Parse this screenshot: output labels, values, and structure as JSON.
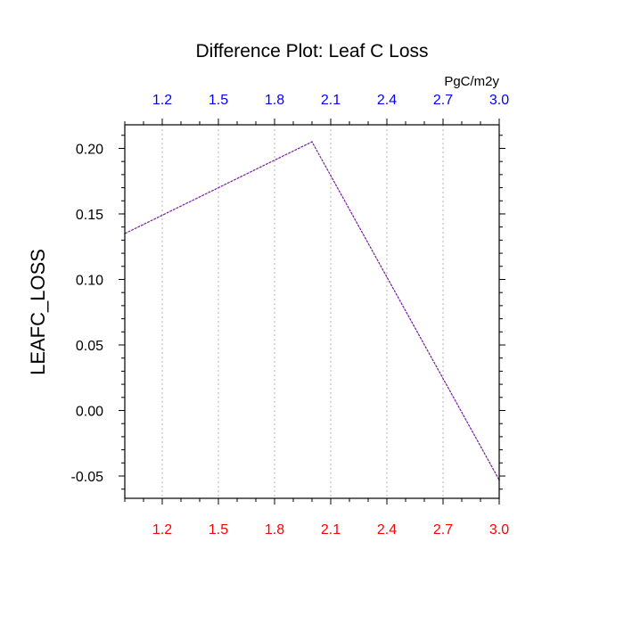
{
  "chart_data": {
    "type": "line",
    "title": "Difference Plot: Leaf C Loss",
    "ylabel": "LEAFC_LOSS",
    "xlabel": "",
    "units_label": "PgC/m2y",
    "xlim": [
      1.0,
      3.0
    ],
    "ylim": [
      -0.067,
      0.218
    ],
    "x_ticks": [
      1.2,
      1.5,
      1.8,
      2.1,
      2.4,
      2.7,
      3.0
    ],
    "x_tick_labels": [
      "1.2",
      "1.5",
      "1.8",
      "2.1",
      "2.4",
      "2.7",
      "3.0"
    ],
    "y_ticks": [
      -0.05,
      0.0,
      0.05,
      0.1,
      0.15,
      0.2
    ],
    "y_tick_labels": [
      "-0.05",
      "0.00",
      "0.05",
      "0.10",
      "0.15",
      "0.20"
    ],
    "grid": "vertical dotted",
    "series": [
      {
        "x": [
          1.0,
          2.0,
          3.0
        ],
        "y": [
          0.135,
          0.205,
          -0.053
        ],
        "color": "#7a1fa2"
      }
    ]
  },
  "colors": {
    "top_axis_labels": "#0000ff",
    "bottom_axis_labels": "#ff0000",
    "axis": "#000000",
    "grid": "#b4b4b4",
    "line": "#7a1fa2"
  }
}
